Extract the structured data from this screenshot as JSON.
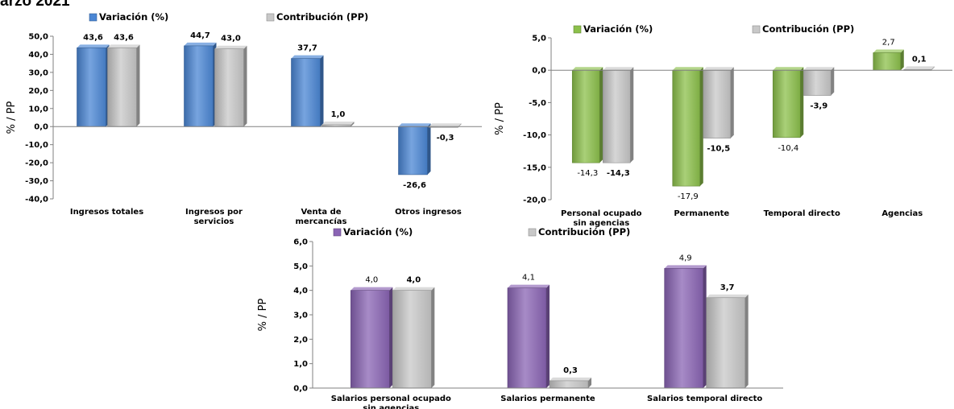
{
  "header": {
    "title": "arzo 2021"
  },
  "chart_data": [
    {
      "type": "bar",
      "categories": [
        "Ingresos totales",
        "Ingresos por servicios",
        "Venta de mercancías",
        "Otros ingresos"
      ],
      "category_lines": [
        [
          "Ingresos totales"
        ],
        [
          "Ingresos por",
          "servicios"
        ],
        [
          "Venta de",
          "mercancías"
        ],
        [
          "Otros ingresos"
        ]
      ],
      "series": [
        {
          "name": "Variación (%)",
          "values": [
            43.6,
            44.7,
            37.7,
            -26.6
          ],
          "color": "#4a86d4"
        },
        {
          "name": "Contribución (PP)",
          "values": [
            43.6,
            43.0,
            1.0,
            -0.3
          ],
          "color": "#c8c8c8"
        }
      ],
      "value_labels": [
        [
          "43,6",
          "44,7",
          "37,7",
          "-26,6"
        ],
        [
          "43,6",
          "43,0",
          "1,0",
          "-0,3"
        ]
      ],
      "ylabel": "% / PP",
      "ylim": [
        -40,
        50
      ],
      "yticks": [
        -40,
        -30,
        -20,
        -10,
        0,
        10,
        20,
        30,
        40,
        50
      ],
      "ytick_labels": [
        "-40,0",
        "-30,0",
        "-20,0",
        "-10,0",
        "0,0",
        "10,0",
        "20,0",
        "30,0",
        "40,0",
        "50,0"
      ],
      "legend": "top",
      "grid": false
    },
    {
      "type": "bar",
      "categories": [
        "Personal ocupado sin agencias",
        "Permanente",
        "Temporal directo",
        "Agencias"
      ],
      "category_lines": [
        [
          "Personal ocupado",
          "sin agencias"
        ],
        [
          "Permanente"
        ],
        [
          "Temporal directo"
        ],
        [
          "Agencias"
        ]
      ],
      "series": [
        {
          "name": "Variación (%)",
          "values": [
            -14.3,
            -17.9,
            -10.4,
            2.7
          ],
          "color": "#8cc04b"
        },
        {
          "name": "Contribución (PP)",
          "values": [
            -14.3,
            -10.5,
            -3.9,
            0.1
          ],
          "color": "#c8c8c8"
        }
      ],
      "value_labels": [
        [
          "-14,3",
          "-17,9",
          "-10,4",
          "2,7"
        ],
        [
          "-14,3",
          "-10,5",
          "-3,9",
          "0,1"
        ]
      ],
      "ylabel": "% / PP",
      "ylim": [
        -20,
        5
      ],
      "yticks": [
        -20,
        -15,
        -10,
        -5,
        0,
        5
      ],
      "ytick_labels": [
        "-20,0",
        "-15,0",
        "-10,0",
        "-5,0",
        "0,0",
        "5,0"
      ],
      "legend": "top",
      "grid": false
    },
    {
      "type": "bar",
      "categories": [
        "Salarios personal ocupado sin agencias",
        "Salarios permanente",
        "Salarios temporal directo"
      ],
      "category_lines": [
        [
          "Salarios personal ocupado",
          "sin agencias"
        ],
        [
          "Salarios permanente"
        ],
        [
          "Salarios temporal directo"
        ]
      ],
      "series": [
        {
          "name": "Variación (%)",
          "values": [
            4.0,
            4.1,
            4.9
          ],
          "color": "#8a64b4"
        },
        {
          "name": "Contribución (PP)",
          "values": [
            4.0,
            0.3,
            3.7
          ],
          "color": "#c8c8c8"
        }
      ],
      "value_labels": [
        [
          "4,0",
          "4,1",
          "4,9"
        ],
        [
          "4,0",
          "0,3",
          "3,7"
        ]
      ],
      "ylabel": "% / PP",
      "ylim": [
        0,
        6
      ],
      "yticks": [
        0,
        1,
        2,
        3,
        4,
        5,
        6
      ],
      "ytick_labels": [
        "0,0",
        "1,0",
        "2,0",
        "3,0",
        "4,0",
        "5,0",
        "6,0"
      ],
      "legend": "top",
      "grid": false
    }
  ]
}
